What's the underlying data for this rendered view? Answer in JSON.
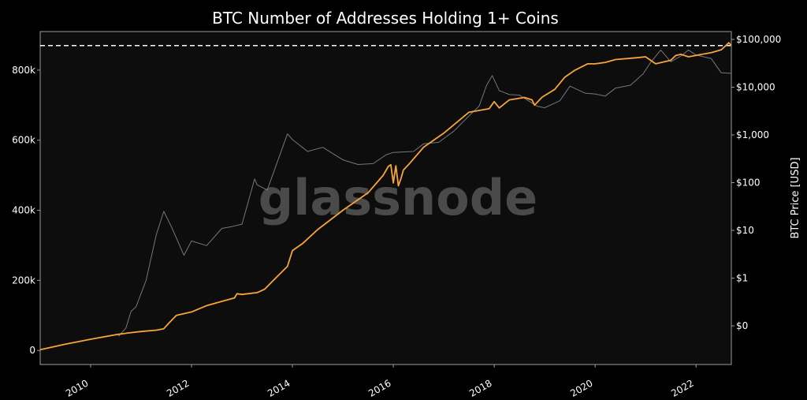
{
  "chart_data": {
    "type": "line",
    "title": "BTC Number of Addresses Holding 1+ Coins",
    "xlabel": "",
    "ylabel_left": "",
    "ylabel_right": "BTC Price [USD]",
    "watermark": "glassnode",
    "x_range": [
      2009.0,
      2022.7
    ],
    "y_left_range": [
      -40000,
      910000
    ],
    "y_right_scale": "log",
    "x_ticks": [
      {
        "value": 2010,
        "label": "2010"
      },
      {
        "value": 2012,
        "label": "2012"
      },
      {
        "value": 2014,
        "label": "2014"
      },
      {
        "value": 2016,
        "label": "2016"
      },
      {
        "value": 2018,
        "label": "2018"
      },
      {
        "value": 2020,
        "label": "2020"
      },
      {
        "value": 2022,
        "label": "2022"
      }
    ],
    "y_left_ticks": [
      {
        "value": 0,
        "label": "0"
      },
      {
        "value": 200000,
        "label": "200k"
      },
      {
        "value": 400000,
        "label": "400k"
      },
      {
        "value": 600000,
        "label": "600k"
      },
      {
        "value": 800000,
        "label": "800k"
      }
    ],
    "y_right_ticks": [
      {
        "value": 0.1,
        "label": "$0"
      },
      {
        "value": 1,
        "label": "$1"
      },
      {
        "value": 10,
        "label": "$10"
      },
      {
        "value": 100,
        "label": "$100"
      },
      {
        "value": 1000,
        "label": "$1,000"
      },
      {
        "value": 10000,
        "label": "$10,000"
      },
      {
        "value": 100000,
        "label": "$100,000"
      }
    ],
    "reference_line": {
      "axis": "left",
      "value": 870000,
      "style": "dashed",
      "color": "#ffffff"
    },
    "series": [
      {
        "axis": "left",
        "color": "#f7a43a",
        "x": [
          2009.0,
          2009.5,
          2010.0,
          2010.5,
          2010.75,
          2011.0,
          2011.3,
          2011.45,
          2011.55,
          2011.7,
          2012.0,
          2012.3,
          2012.6,
          2012.85,
          2012.9,
          2013.0,
          2013.3,
          2013.45,
          2013.6,
          2013.9,
          2014.0,
          2014.2,
          2014.5,
          2015.0,
          2015.5,
          2015.8,
          2015.9,
          2015.95,
          2016.0,
          2016.05,
          2016.1,
          2016.15,
          2016.2,
          2016.3,
          2016.6,
          2017.0,
          2017.5,
          2017.9,
          2018.0,
          2018.1,
          2018.3,
          2018.6,
          2018.75,
          2018.8,
          2018.95,
          2019.2,
          2019.4,
          2019.6,
          2019.85,
          2020.0,
          2020.2,
          2020.4,
          2020.8,
          2021.0,
          2021.2,
          2021.5,
          2021.6,
          2021.7,
          2021.85,
          2022.0,
          2022.3,
          2022.5,
          2022.65,
          2022.7
        ],
        "values": [
          2000,
          18000,
          32000,
          45000,
          50000,
          54000,
          58000,
          62000,
          78000,
          100000,
          110000,
          128000,
          140000,
          150000,
          162000,
          160000,
          165000,
          175000,
          197000,
          240000,
          285000,
          305000,
          345000,
          400000,
          450000,
          500000,
          525000,
          530000,
          478000,
          527000,
          470000,
          490000,
          515000,
          530000,
          580000,
          620000,
          680000,
          690000,
          710000,
          692000,
          715000,
          722000,
          715000,
          700000,
          723000,
          745000,
          780000,
          800000,
          818000,
          818000,
          822000,
          830000,
          835000,
          838000,
          818000,
          828000,
          842000,
          845000,
          838000,
          842000,
          850000,
          858000,
          878000,
          870000
        ]
      },
      {
        "axis": "right",
        "color": "#777777",
        "x": [
          2010.55,
          2010.7,
          2010.8,
          2010.9,
          2011.1,
          2011.3,
          2011.45,
          2011.6,
          2011.85,
          2012.0,
          2012.3,
          2012.6,
          2012.8,
          2013.0,
          2013.25,
          2013.3,
          2013.5,
          2013.9,
          2014.0,
          2014.3,
          2014.6,
          2015.0,
          2015.3,
          2015.6,
          2015.85,
          2016.0,
          2016.4,
          2016.6,
          2016.9,
          2017.2,
          2017.5,
          2017.7,
          2017.85,
          2017.96,
          2018.1,
          2018.3,
          2018.5,
          2018.85,
          2019.0,
          2019.3,
          2019.5,
          2019.8,
          2020.0,
          2020.2,
          2020.4,
          2020.7,
          2020.95,
          2021.1,
          2021.3,
          2021.5,
          2021.7,
          2021.85,
          2022.0,
          2022.3,
          2022.5,
          2022.7
        ],
        "values": [
          0.06,
          0.09,
          0.2,
          0.25,
          0.9,
          8,
          25,
          12,
          3,
          6,
          4.8,
          11,
          12,
          13.5,
          120,
          90,
          70,
          1050,
          800,
          450,
          550,
          300,
          240,
          250,
          380,
          430,
          450,
          650,
          700,
          1200,
          2500,
          4000,
          11000,
          17500,
          8500,
          7000,
          6800,
          4000,
          3700,
          5200,
          10500,
          7500,
          7200,
          6500,
          9500,
          11000,
          19000,
          33000,
          60000,
          34000,
          45000,
          60000,
          47000,
          40000,
          20000,
          19500
        ]
      }
    ]
  }
}
